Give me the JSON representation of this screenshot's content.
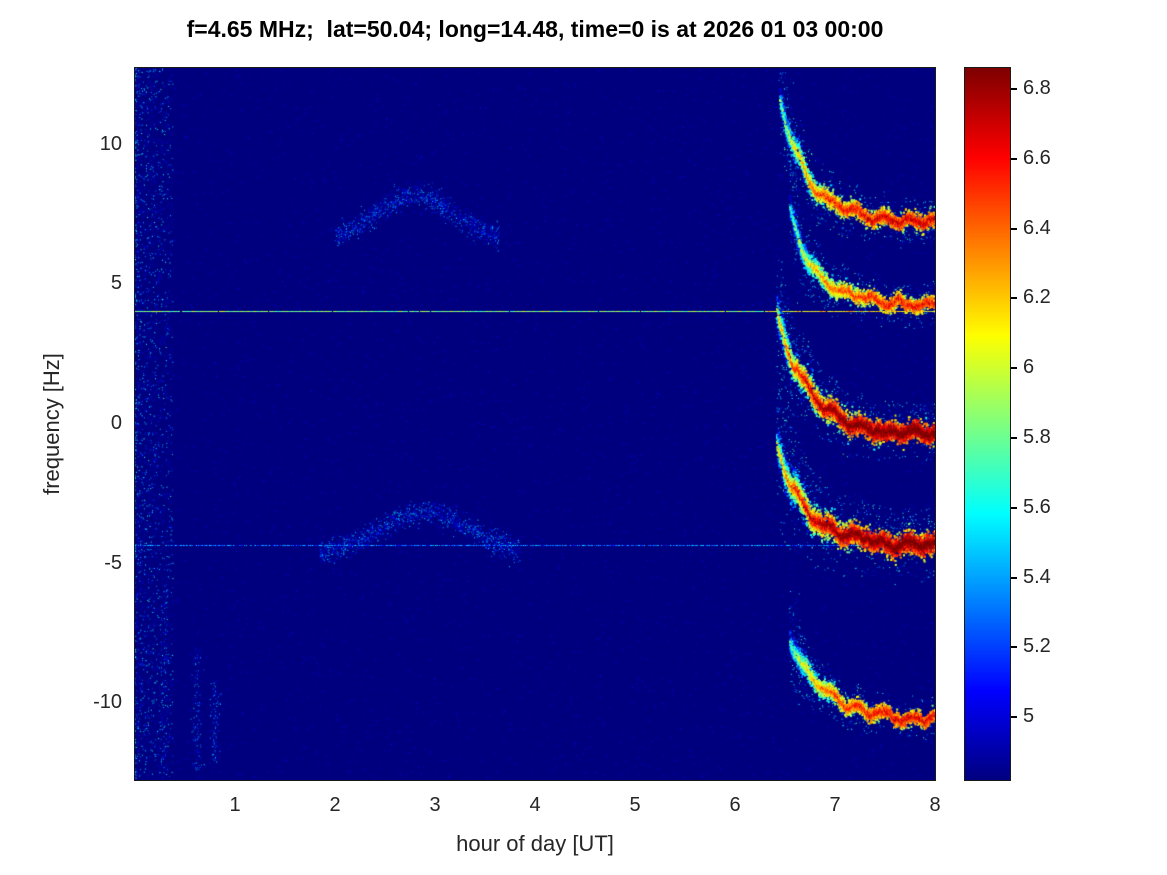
{
  "chart_data": {
    "type": "heatmap",
    "title": "f=4.65 MHz;  lat=50.04; long=14.48, time=0 is at 2026 01 03 00:00",
    "xlabel": "hour of day [UT]",
    "ylabel": "frequency [Hz]",
    "xlim": [
      0,
      8
    ],
    "ylim": [
      -12.75,
      12.75
    ],
    "x_ticks": [
      1,
      2,
      3,
      4,
      5,
      6,
      7,
      8
    ],
    "y_ticks": [
      -10,
      -5,
      0,
      5,
      10
    ],
    "grid": false,
    "colormap": "jet",
    "clim": [
      4.82,
      6.86
    ],
    "colorbar_position": "right",
    "colorbar_ticks": [
      {
        "value": 6.8,
        "label": "6.8"
      },
      {
        "value": 6.6,
        "label": "6.6"
      },
      {
        "value": 6.4,
        "label": "6.4"
      },
      {
        "value": 6.2,
        "label": "6.2"
      },
      {
        "value": 6.0,
        "label": "6"
      },
      {
        "value": 5.8,
        "label": "5.8"
      },
      {
        "value": 5.6,
        "label": "5.6"
      },
      {
        "value": 5.4,
        "label": "5.4"
      },
      {
        "value": 5.2,
        "label": "5.2"
      },
      {
        "value": 5.0,
        "label": "5"
      }
    ],
    "background_value": 4.82,
    "noise": {
      "sparse_n": 4500,
      "sparse_vmax": 5.08,
      "left_band": {
        "h_max": 0.38,
        "n": 2600,
        "v_min": 4.95,
        "v_max": 5.7
      },
      "columns": [
        {
          "h": 0.3,
          "f_min": -12.5,
          "f_max": -6.0,
          "n": 120
        },
        {
          "h": 0.62,
          "f_min": -12.4,
          "f_max": -8.0,
          "n": 140
        },
        {
          "h": 0.8,
          "f_min": -12.2,
          "f_max": -9.2,
          "n": 120
        }
      ]
    },
    "carrier_lines": [
      {
        "freq": 4.05,
        "v_base": 5.6,
        "v_var": 0.5,
        "draw_prob": 0.97,
        "boost_h": 6.3,
        "boost_v": 0.3
      },
      {
        "freq": -4.35,
        "v_base": 5.05,
        "v_var": 0.5,
        "draw_prob": 0.8,
        "boost_h": 99,
        "boost_v": 0
      }
    ],
    "arcs": [
      {
        "h_range": [
          2.0,
          3.65
        ],
        "center": 2.8,
        "f_base": 6.55,
        "amp": 1.65,
        "sigma": 0.38,
        "n": 1100,
        "v_max": 5.55
      },
      {
        "h_range": [
          1.85,
          3.85
        ],
        "center": 2.9,
        "f_base": -4.7,
        "amp": 1.55,
        "sigma": 0.45,
        "n": 1400,
        "v_max": 5.6
      }
    ],
    "sunrise_traces": [
      {
        "h0": 6.45,
        "f_start": 11.6,
        "f_end": 7.2,
        "tau": 0.3,
        "v_core": 6.55,
        "core_sigma": 0.13,
        "core_n": 3,
        "halo": 0.6,
        "halo_up": 0.45,
        "halo_span": 1.0
      },
      {
        "h0": 6.55,
        "f_start": 7.7,
        "f_end": 4.2,
        "tau": 0.26,
        "v_core": 6.45,
        "core_sigma": 0.12,
        "core_n": 3,
        "halo": 0.55,
        "halo_up": 0.5,
        "halo_span": 0.9
      },
      {
        "h0": 6.42,
        "f_start": 3.9,
        "f_end": -0.4,
        "tau": 0.34,
        "v_core": 6.86,
        "core_sigma": 0.16,
        "core_n": 4,
        "halo": 0.75,
        "halo_up": 0.6,
        "halo_span": 1.3
      },
      {
        "h0": 6.42,
        "f_start": -0.7,
        "f_end": -4.4,
        "tau": 0.3,
        "v_core": 6.86,
        "core_sigma": 0.18,
        "core_n": 4,
        "halo": 0.9,
        "halo_up": 0.7,
        "halo_span": 1.6
      },
      {
        "h0": 6.55,
        "f_start": -7.7,
        "f_end": -10.6,
        "tau": 0.34,
        "v_core": 6.5,
        "core_sigma": 0.11,
        "core_n": 3,
        "halo": 0.5,
        "halo_up": 0.5,
        "halo_span": 0.8
      }
    ]
  }
}
